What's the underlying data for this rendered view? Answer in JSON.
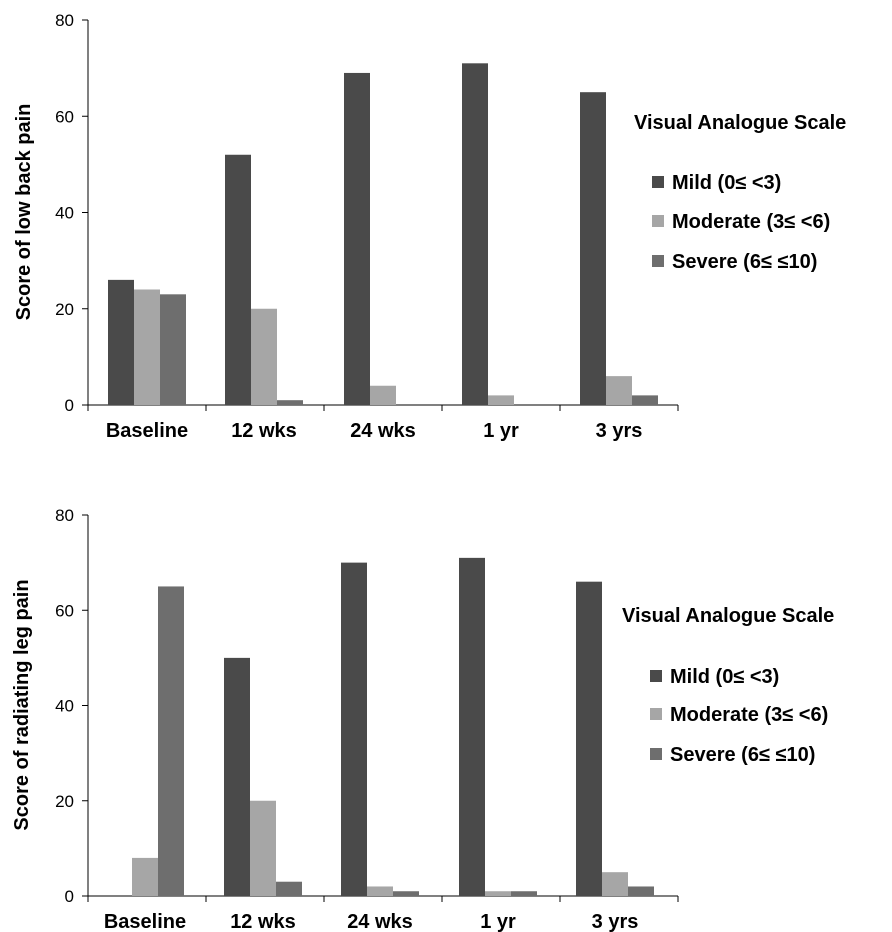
{
  "chart_data": [
    {
      "type": "bar",
      "categories": [
        "Baseline",
        "12 wks",
        "24 wks",
        "1 yr",
        "3 yrs"
      ],
      "ylabel": "Score of low back pain",
      "ylim": [
        0,
        80
      ],
      "yticks": [
        0,
        20,
        40,
        60,
        80
      ],
      "legend_title": "Visual Analogue Scale",
      "legend_position": "right",
      "series": [
        {
          "name": "Mild (0≤ <3)",
          "color": "#4a4a4a",
          "values": [
            26,
            52,
            69,
            71,
            65
          ]
        },
        {
          "name": "Moderate (3≤ <6)",
          "color": "#a6a6a6",
          "values": [
            24,
            20,
            4,
            2,
            6
          ]
        },
        {
          "name": "Severe (6≤ ≤10)",
          "color": "#6e6e6e",
          "values": [
            23,
            1,
            0,
            0,
            2
          ]
        }
      ]
    },
    {
      "type": "bar",
      "categories": [
        "Baseline",
        "12 wks",
        "24 wks",
        "1 yr",
        "3 yrs"
      ],
      "ylabel": "Score of radiating leg pain",
      "ylim": [
        0,
        80
      ],
      "yticks": [
        0,
        20,
        40,
        60,
        80
      ],
      "legend_title": "Visual Analogue Scale",
      "legend_position": "right",
      "series": [
        {
          "name": "Mild (0≤ <3)",
          "color": "#4a4a4a",
          "values": [
            0,
            50,
            70,
            71,
            66
          ]
        },
        {
          "name": "Moderate (3≤ <6)",
          "color": "#a6a6a6",
          "values": [
            8,
            20,
            2,
            1,
            5
          ]
        },
        {
          "name": "Severe (6≤ ≤10)",
          "color": "#6e6e6e",
          "values": [
            65,
            3,
            1,
            1,
            2
          ]
        }
      ]
    }
  ]
}
